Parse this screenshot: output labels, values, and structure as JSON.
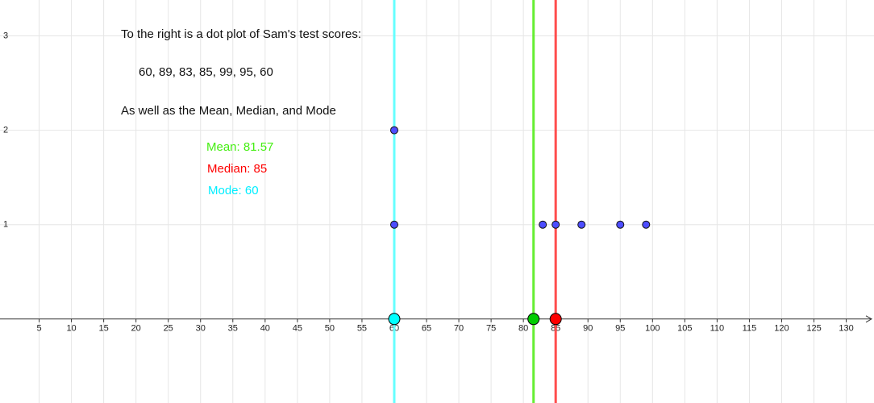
{
  "chart_data": {
    "type": "dotplot",
    "annotations": [
      "To the right is a dot plot of Sam's test scores:",
      "60, 89, 83, 85, 99, 95, 60",
      "As well as the Mean, Median, and Mode"
    ],
    "reference_lines": [
      {
        "label": "Mean: 81.57",
        "value": 81.57,
        "color": "#66ee33",
        "dot": "#00cc00",
        "text_color": "#44ee11"
      },
      {
        "label": "Median: 85",
        "value": 85,
        "color": "#ff4d4d",
        "dot": "#ff0000",
        "text_color": "#ff0000"
      },
      {
        "label": "Mode: 60",
        "value": 60,
        "color": "#66ffff",
        "dot": "#00ffff",
        "text_color": "#00eeff"
      }
    ],
    "series": [
      {
        "color": "#4d4dff",
        "x": [
          60,
          60,
          83,
          85,
          89,
          95,
          99
        ],
        "values": [
          1,
          2,
          1,
          1,
          1,
          1,
          1
        ]
      }
    ],
    "xlim": [
      -1.06,
      134.3
    ],
    "ylim": [
      -0.89,
      3.38
    ],
    "xticks": [
      5,
      10,
      15,
      20,
      25,
      30,
      35,
      40,
      45,
      50,
      55,
      60,
      65,
      70,
      75,
      80,
      85,
      90,
      95,
      100,
      105,
      110,
      115,
      120,
      125,
      130
    ],
    "yticks": [
      1,
      2,
      3
    ],
    "grid": true
  }
}
